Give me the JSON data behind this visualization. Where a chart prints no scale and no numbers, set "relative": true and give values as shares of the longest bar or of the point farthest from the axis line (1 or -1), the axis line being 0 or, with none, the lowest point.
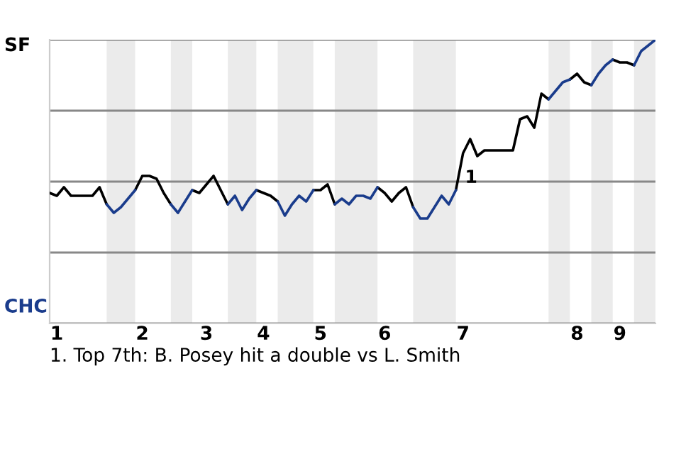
{
  "chart_data": {
    "type": "line",
    "relative": true,
    "categories": [
      null,
      "1",
      null,
      null,
      null,
      null,
      null,
      null,
      null,
      null,
      null,
      null,
      null,
      "2",
      null,
      null,
      null,
      null,
      null,
      null,
      null,
      null,
      "3",
      null,
      null,
      null,
      null,
      null,
      null,
      null,
      "4",
      null,
      null,
      null,
      null,
      null,
      null,
      null,
      "5",
      null,
      null,
      null,
      null,
      null,
      null,
      null,
      null,
      "6",
      null,
      null,
      null,
      null,
      null,
      null,
      null,
      null,
      null,
      null,
      "7",
      null,
      null,
      null,
      null,
      null,
      null,
      null,
      null,
      null,
      null,
      null,
      null,
      null,
      null,
      null,
      "8",
      null,
      null,
      null,
      null,
      null,
      "9",
      null,
      null,
      null,
      null,
      null
    ],
    "series": [
      {
        "color": "#000000",
        "values": [
          0.46,
          0.45,
          0.48,
          0.45,
          0.45,
          0.45,
          0.45,
          0.48,
          0.42,
          null,
          null,
          null,
          0.47,
          0.52,
          0.52,
          0.51,
          0.46,
          0.42,
          null,
          null,
          0.47,
          0.46,
          0.49,
          0.52,
          0.47,
          0.42,
          null,
          null,
          null,
          0.47,
          0.46,
          0.45,
          0.43,
          null,
          null,
          null,
          null,
          0.47,
          0.47,
          0.49,
          0.42,
          null,
          null,
          null,
          null,
          null,
          0.48,
          0.46,
          0.43,
          0.46,
          0.48,
          0.41,
          null,
          null,
          null,
          null,
          null,
          0.47,
          0.6,
          0.65,
          0.59,
          0.61,
          0.61,
          0.61,
          0.61,
          0.61,
          0.72,
          0.73,
          0.69,
          0.81,
          0.79,
          null,
          null,
          0.86,
          0.88,
          0.85,
          0.84,
          null,
          null,
          0.93,
          0.92,
          0.92,
          0.91,
          null,
          null,
          null
        ]
      },
      {
        "color": "#1a3c8c",
        "values": [
          null,
          null,
          null,
          null,
          null,
          null,
          null,
          null,
          0.42,
          0.39,
          0.41,
          0.44,
          0.47,
          null,
          null,
          null,
          null,
          0.42,
          0.39,
          0.43,
          0.47,
          null,
          null,
          null,
          null,
          0.42,
          0.45,
          0.4,
          0.44,
          0.47,
          null,
          null,
          0.43,
          0.38,
          0.42,
          0.45,
          0.43,
          0.47,
          null,
          null,
          0.42,
          0.44,
          0.42,
          0.45,
          0.45,
          0.44,
          0.48,
          null,
          null,
          null,
          null,
          0.41,
          0.37,
          0.37,
          0.41,
          0.45,
          0.42,
          0.47,
          null,
          null,
          null,
          null,
          null,
          null,
          null,
          null,
          null,
          null,
          null,
          null,
          0.79,
          0.82,
          0.85,
          0.86,
          null,
          null,
          0.84,
          0.88,
          0.91,
          0.93,
          null,
          null,
          0.91,
          0.96,
          0.98,
          1.0
        ]
      }
    ],
    "grid": "y",
    "legend": false,
    "marker": "none",
    "line_style": "solid",
    "annotations": [
      "SF",
      "CHC",
      {
        "text": "1",
        "x": "7",
        "y": 0.6
      },
      "1. Top 7th: B. Posey hit a double vs L. Smith"
    ]
  }
}
